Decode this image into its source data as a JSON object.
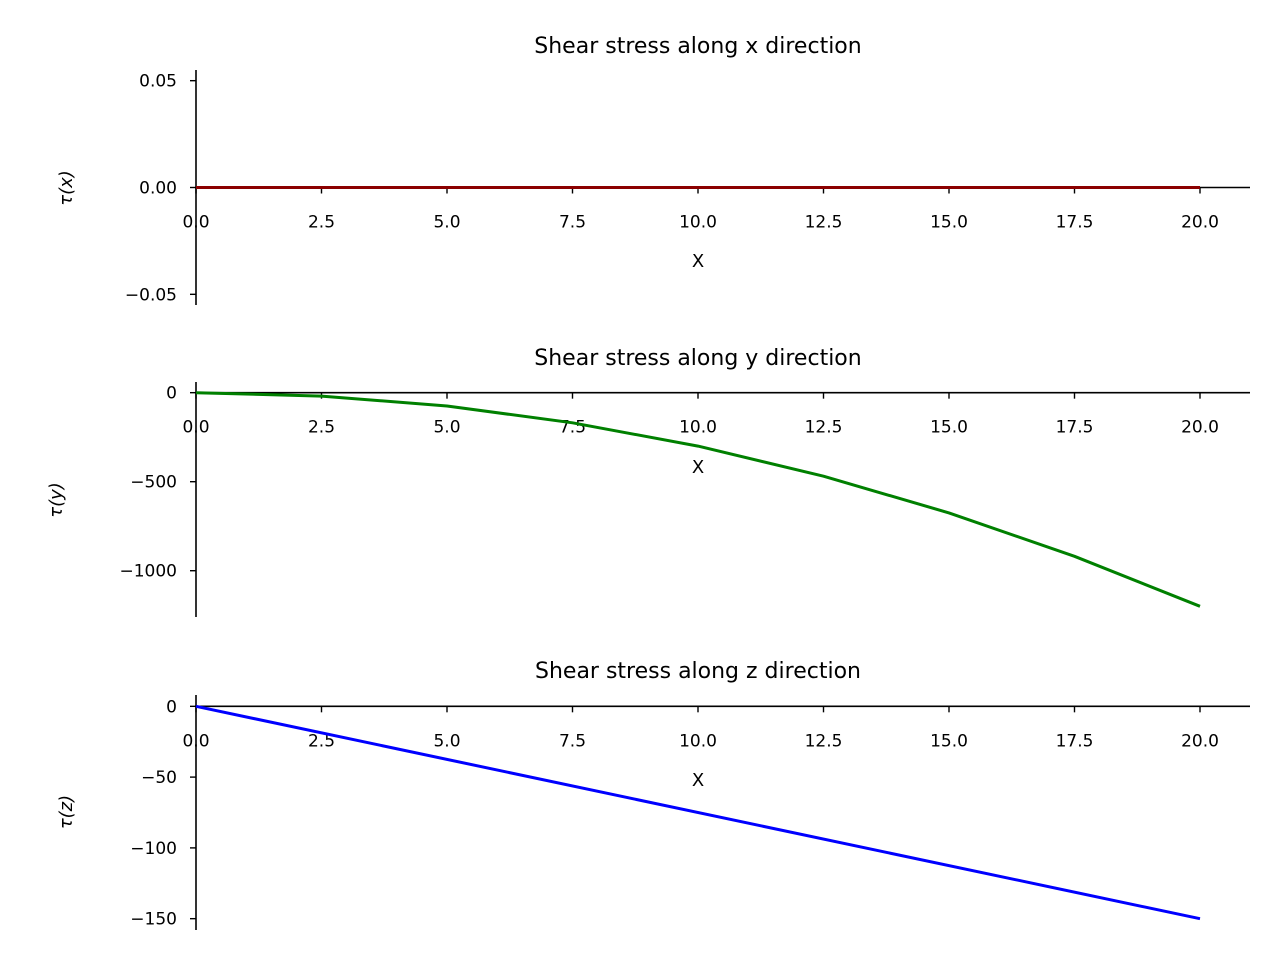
{
  "chart_data": [
    {
      "type": "line",
      "title": "Shear stress along x direction",
      "xlabel": "X",
      "ylabel": "τ(x)",
      "xlim": [
        0,
        20
      ],
      "ylim": [
        -0.055,
        0.055
      ],
      "xticks": [
        0,
        2.5,
        5,
        7.5,
        10,
        12.5,
        15,
        17.5,
        20
      ],
      "xtick_labels": [
        "0.0",
        "2.5",
        "5.0",
        "7.5",
        "10.0",
        "12.5",
        "15.0",
        "17.5",
        "20.0"
      ],
      "yticks": [
        -0.05,
        0,
        0.05
      ],
      "ytick_labels": [
        "−0.05",
        "0.00",
        "0.05"
      ],
      "grid": false,
      "spines": "centered at origin",
      "series": [
        {
          "x": [
            0,
            20
          ],
          "y": [
            0,
            0
          ],
          "color": "#8b0000"
        }
      ]
    },
    {
      "type": "line",
      "title": "Shear stress along y direction",
      "xlabel": "X",
      "ylabel": "τ(y)",
      "xlim": [
        0,
        20
      ],
      "ylim": [
        -1260,
        60
      ],
      "xticks": [
        0,
        2.5,
        5,
        7.5,
        10,
        12.5,
        15,
        17.5,
        20
      ],
      "xtick_labels": [
        "0.0",
        "2.5",
        "5.0",
        "7.5",
        "10.0",
        "12.5",
        "15.0",
        "17.5",
        "20.0"
      ],
      "yticks": [
        0,
        -500,
        -1000
      ],
      "ytick_labels": [
        "0",
        "−500",
        "−1000"
      ],
      "grid": false,
      "spines": "centered at origin",
      "series": [
        {
          "x": [
            0,
            2.5,
            5,
            7.5,
            10,
            12.5,
            15,
            17.5,
            20
          ],
          "y": [
            0,
            -19,
            -75,
            -169,
            -300,
            -469,
            -675,
            -919,
            -1200
          ],
          "color": "#008000"
        }
      ]
    },
    {
      "type": "line",
      "title": "Shear stress along z direction",
      "xlabel": "X",
      "ylabel": "τ(z)",
      "xlim": [
        0,
        20
      ],
      "ylim": [
        -158,
        8
      ],
      "xticks": [
        0,
        2.5,
        5,
        7.5,
        10,
        12.5,
        15,
        17.5,
        20
      ],
      "xtick_labels": [
        "0.0",
        "2.5",
        "5.0",
        "7.5",
        "10.0",
        "12.5",
        "15.0",
        "17.5",
        "20.0"
      ],
      "yticks": [
        0,
        -50,
        -100,
        -150
      ],
      "ytick_labels": [
        "0",
        "−50",
        "−100",
        "−150"
      ],
      "grid": false,
      "spines": "centered at origin",
      "series": [
        {
          "x": [
            0,
            20
          ],
          "y": [
            0,
            -150
          ],
          "color": "#0000ff"
        }
      ]
    }
  ]
}
